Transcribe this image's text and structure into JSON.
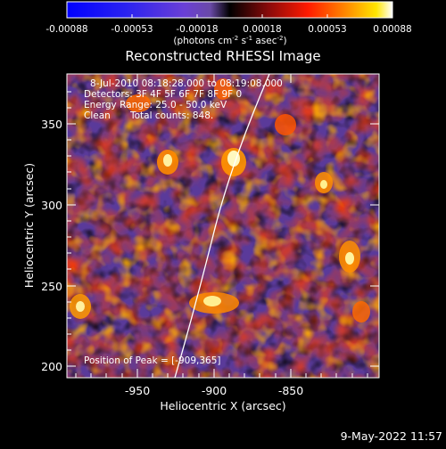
{
  "colorbar": {
    "labels": [
      "-0.00088",
      "-0.00053",
      "-0.00018",
      "0.00018",
      "0.00053",
      "0.00088"
    ],
    "unit_base": "(photons cm",
    "unit_e1": "-2",
    "unit_mid": " s",
    "unit_e2": "-1",
    "unit_mid2": " asec",
    "unit_e3": "-2",
    "unit_end": ")"
  },
  "image": {
    "title": "Reconstructed RHESSI Image",
    "xlabel": "Heliocentric X (arcsec)",
    "ylabel": "Heliocentric Y (arcsec)",
    "x_ticks": [
      "-950",
      "-900",
      "-850"
    ],
    "y_ticks": [
      "350",
      "300",
      "250",
      "200"
    ],
    "xlim": [
      -995,
      -895
    ],
    "ylim": [
      193,
      383
    ]
  },
  "overlay": {
    "time_range": "8-Jul-2010 08:18:28.000 to 08:19:08.000",
    "detectors": "Detectors: 3F 4F 5F 6F 7F 8F 9F 0",
    "energy_range": "Energy Range: 25.0 - 50.0 keV",
    "clean_label": "Clean",
    "total_counts": "Total counts: 848.",
    "peak": "Position of Peak = [-909,365]"
  },
  "footer": {
    "datestamp": "9-May-2022 11:57"
  },
  "colors": {
    "bg": "#000000",
    "frame": "#ffffff",
    "limb": "#ffffff"
  }
}
